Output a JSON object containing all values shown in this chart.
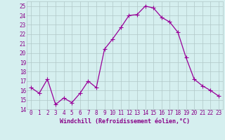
{
  "x": [
    0,
    1,
    2,
    3,
    4,
    5,
    6,
    7,
    8,
    9,
    10,
    11,
    12,
    13,
    14,
    15,
    16,
    17,
    18,
    19,
    20,
    21,
    22,
    23
  ],
  "y": [
    16.3,
    15.7,
    17.2,
    14.5,
    15.2,
    14.7,
    15.7,
    17.0,
    16.3,
    20.4,
    21.5,
    22.7,
    24.0,
    24.1,
    25.0,
    24.8,
    23.8,
    23.3,
    22.2,
    19.5,
    17.2,
    16.5,
    16.0,
    15.4
  ],
  "line_color": "#990099",
  "marker": "+",
  "marker_size": 4,
  "bg_color": "#d5efef",
  "grid_color": "#b0c8c8",
  "xlabel": "Windchill (Refroidissement éolien,°C)",
  "xlim": [
    -0.5,
    23.5
  ],
  "ylim": [
    14,
    25.5
  ],
  "yticks": [
    14,
    15,
    16,
    17,
    18,
    19,
    20,
    21,
    22,
    23,
    24,
    25
  ],
  "xticks": [
    0,
    1,
    2,
    3,
    4,
    5,
    6,
    7,
    8,
    9,
    10,
    11,
    12,
    13,
    14,
    15,
    16,
    17,
    18,
    19,
    20,
    21,
    22,
    23
  ],
  "xlabel_color": "#880088",
  "tick_color": "#880088",
  "label_fontsize": 6.0,
  "tick_fontsize": 5.5
}
